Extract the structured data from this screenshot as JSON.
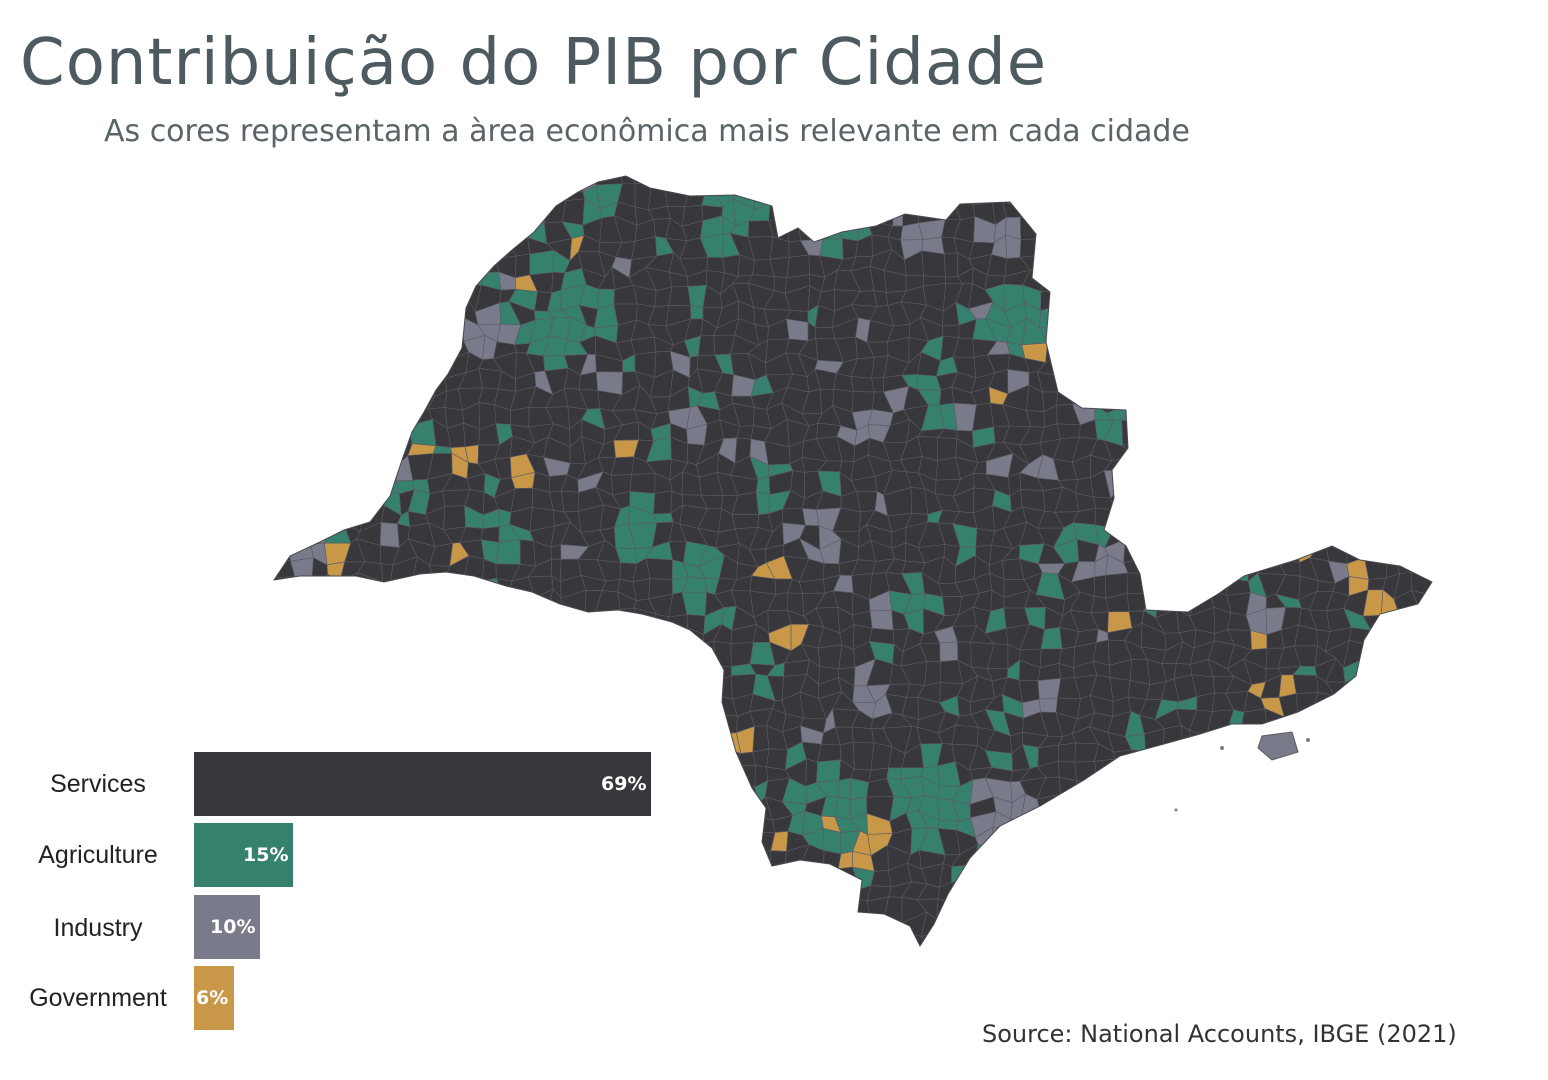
{
  "title": "Contribuição do PIB por Cidade",
  "subtitle": "As cores representam a àrea econômica mais relevante em cada cidade",
  "source": "Source: National Accounts, IBGE (2021)",
  "colors": {
    "services": "#38373c",
    "agriculture": "#36806e",
    "industry": "#7a7b8a",
    "government": "#c99748",
    "border": "#5a5a62"
  },
  "chart_data": {
    "type": "bar",
    "orientation": "horizontal",
    "categories": [
      "Services",
      "Agriculture",
      "Industry",
      "Government"
    ],
    "values": [
      69,
      15,
      10,
      6
    ],
    "value_labels": [
      "69%",
      "15%",
      "10%",
      "6%"
    ],
    "unit": "%",
    "xlim": [
      0,
      69
    ]
  },
  "map": {
    "region": "São Paulo state municipalities",
    "categories": [
      "Services",
      "Agriculture",
      "Industry",
      "Government"
    ]
  }
}
